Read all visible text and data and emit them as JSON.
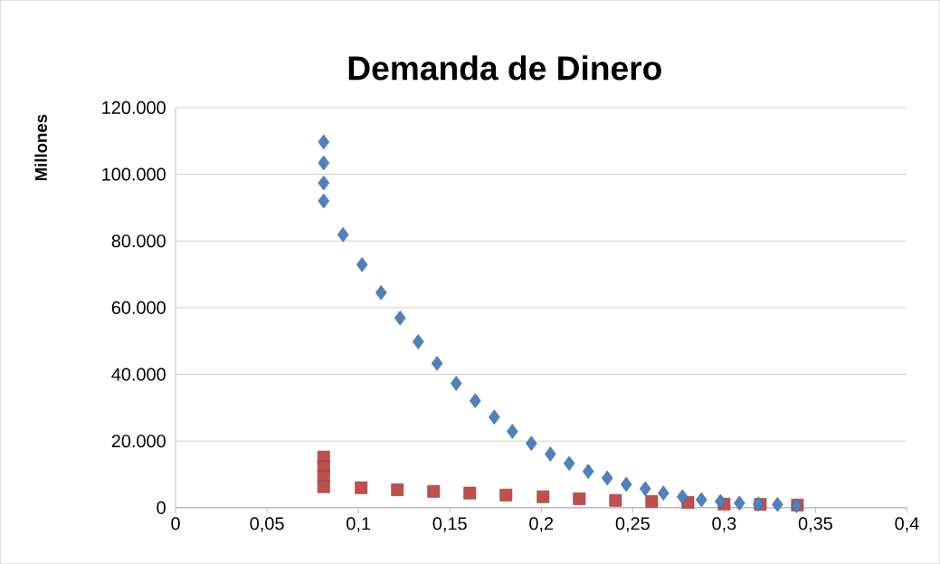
{
  "chart_data": {
    "type": "scatter",
    "title": "Demanda de Dinero",
    "ylabel": "Millones",
    "xlim": [
      0,
      0.4
    ],
    "ylim": [
      0,
      120000
    ],
    "xticks": [
      {
        "value": 0,
        "label": "0"
      },
      {
        "value": 0.05,
        "label": "0,05"
      },
      {
        "value": 0.1,
        "label": "0,1"
      },
      {
        "value": 0.15,
        "label": "0,15"
      },
      {
        "value": 0.2,
        "label": "0,2"
      },
      {
        "value": 0.25,
        "label": "0,25"
      },
      {
        "value": 0.3,
        "label": "0,3"
      },
      {
        "value": 0.35,
        "label": "0,35"
      },
      {
        "value": 0.4,
        "label": "0,4"
      }
    ],
    "yticks": [
      {
        "value": 0,
        "label": "0"
      },
      {
        "value": 20000,
        "label": "20.000"
      },
      {
        "value": 40000,
        "label": "40.000"
      },
      {
        "value": 60000,
        "label": "60.000"
      },
      {
        "value": 80000,
        "label": "80.000"
      },
      {
        "value": 100000,
        "label": "100.000"
      },
      {
        "value": 120000,
        "label": "120.000"
      }
    ],
    "grid": "y",
    "series": [
      {
        "color": "#4f81bd",
        "marker": "diamond",
        "x": [
          0.081,
          0.081,
          0.081,
          0.081,
          0.0916,
          0.102,
          0.1124,
          0.1228,
          0.1327,
          0.143,
          0.1535,
          0.1639,
          0.1743,
          0.1842,
          0.1946,
          0.205,
          0.2153,
          0.2257,
          0.2361,
          0.2465,
          0.2569,
          0.2668,
          0.2772,
          0.2876,
          0.298,
          0.3084,
          0.3188,
          0.3292,
          0.3396
        ],
        "values": [
          109700,
          103400,
          97400,
          92000,
          81900,
          72900,
          64500,
          56900,
          49800,
          43300,
          37300,
          32100,
          27200,
          22900,
          19300,
          16100,
          13300,
          10900,
          8900,
          7000,
          5700,
          4400,
          3300,
          2400,
          1900,
          1400,
          1100,
          1000,
          600
        ]
      },
      {
        "color": "#c0504d",
        "marker": "square",
        "x": [
          0.081,
          0.081,
          0.081,
          0.081,
          0.1015,
          0.1213,
          0.1411,
          0.1609,
          0.1807,
          0.201,
          0.2208,
          0.2406,
          0.2604,
          0.2802,
          0.3,
          0.3198,
          0.3401
        ],
        "values": [
          15200,
          12200,
          9300,
          6300,
          6000,
          5400,
          4900,
          4400,
          3800,
          3300,
          2700,
          2200,
          1900,
          1600,
          1100,
          1000,
          800
        ]
      }
    ]
  }
}
